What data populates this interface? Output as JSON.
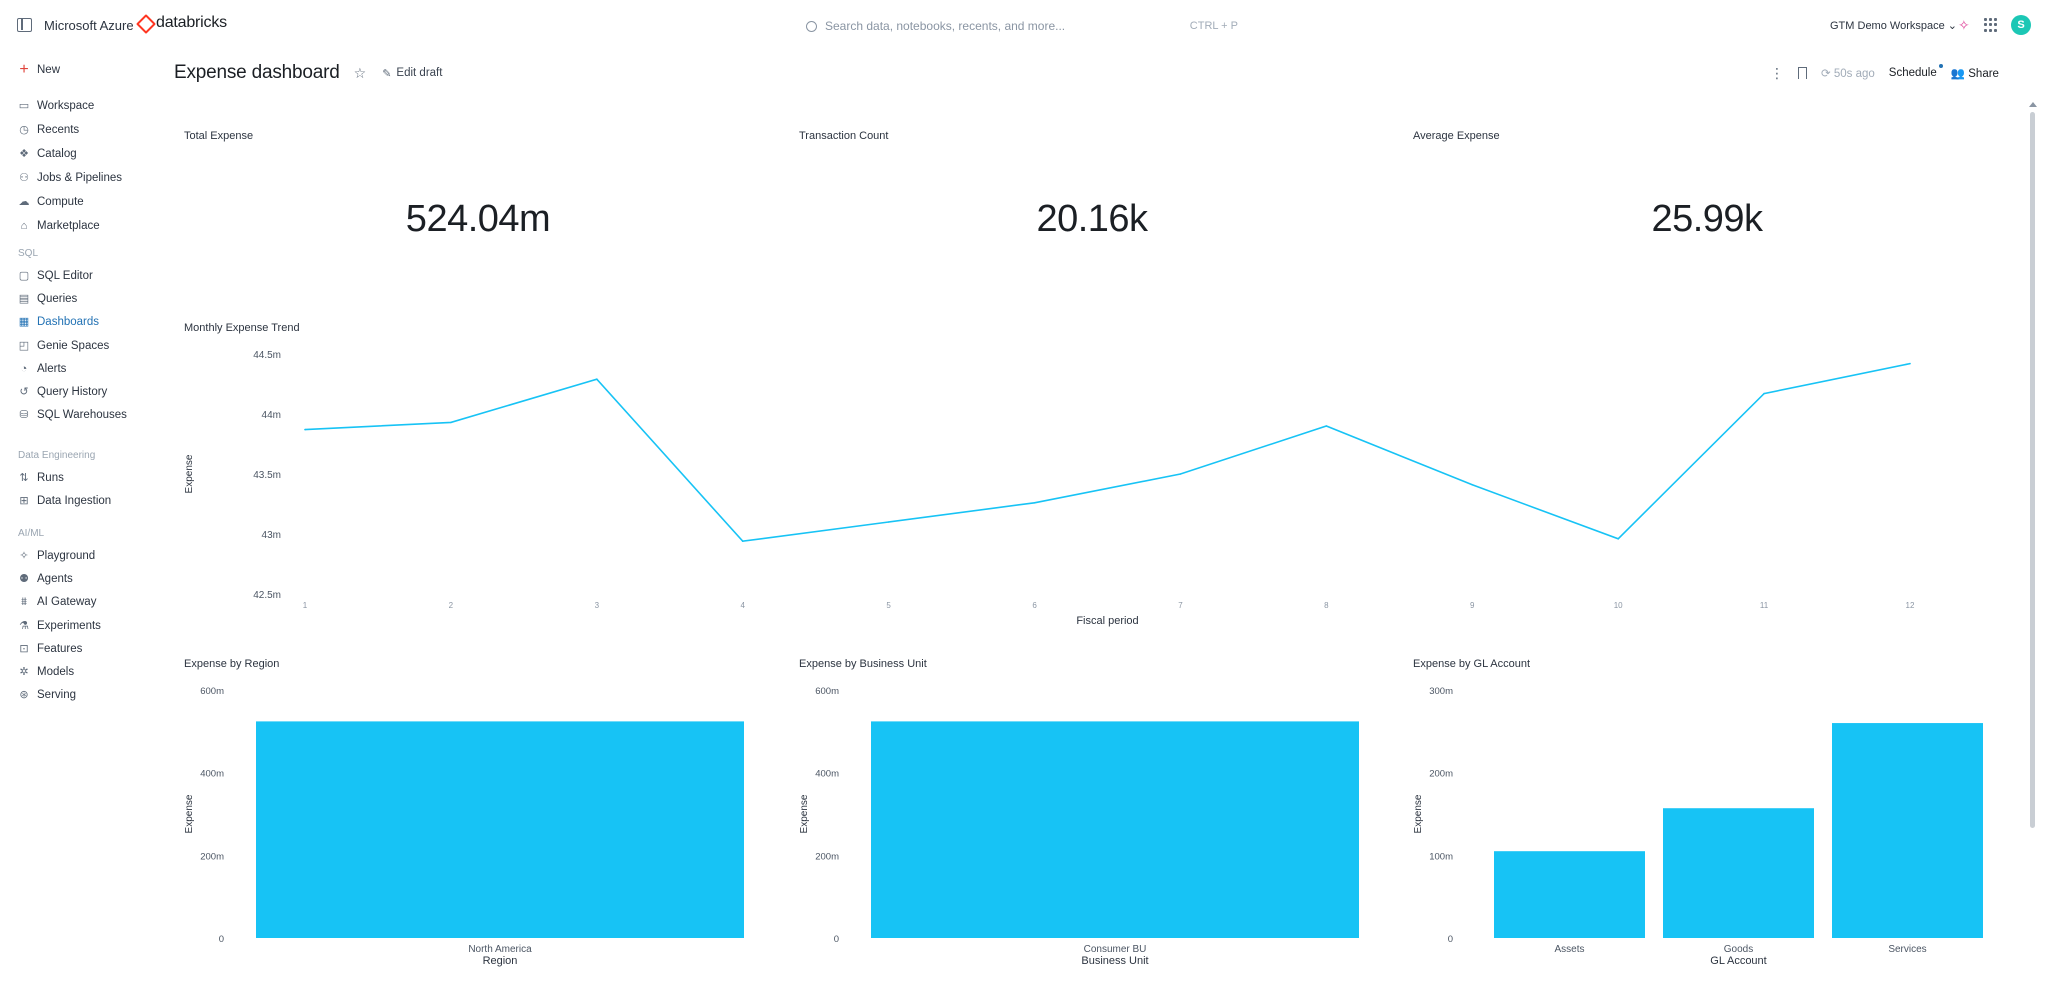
{
  "topbar": {
    "azure_label": "Microsoft Azure",
    "brand_label": "databricks",
    "search_placeholder": "Search data, notebooks, recents, and more...",
    "search_shortcut": "CTRL + P",
    "workspace_label": "GTM Demo Workspace",
    "avatar_initial": "S"
  },
  "sidebar": {
    "new_label": "New",
    "items_main": [
      {
        "label": "Workspace",
        "icon": "folder-icon"
      },
      {
        "label": "Recents",
        "icon": "clock-icon"
      },
      {
        "label": "Catalog",
        "icon": "catalog-icon"
      },
      {
        "label": "Jobs & Pipelines",
        "icon": "workflow-icon"
      },
      {
        "label": "Compute",
        "icon": "cloud-icon"
      },
      {
        "label": "Marketplace",
        "icon": "store-icon"
      }
    ],
    "section_sql": "SQL",
    "items_sql": [
      {
        "label": "SQL Editor",
        "icon": "editor-icon"
      },
      {
        "label": "Queries",
        "icon": "query-icon"
      },
      {
        "label": "Dashboards",
        "icon": "dashboard-icon",
        "active": true
      },
      {
        "label": "Genie Spaces",
        "icon": "genie-icon"
      },
      {
        "label": "Alerts",
        "icon": "bell-icon"
      },
      {
        "label": "Query History",
        "icon": "history-icon"
      },
      {
        "label": "SQL Warehouses",
        "icon": "warehouse-icon"
      }
    ],
    "section_de": "Data Engineering",
    "items_de": [
      {
        "label": "Runs",
        "icon": "runs-icon"
      },
      {
        "label": "Data Ingestion",
        "icon": "ingestion-icon"
      }
    ],
    "section_ai": "AI/ML",
    "items_ai": [
      {
        "label": "Playground",
        "icon": "playground-icon"
      },
      {
        "label": "Agents",
        "icon": "agents-icon"
      },
      {
        "label": "AI Gateway",
        "icon": "gateway-icon"
      },
      {
        "label": "Experiments",
        "icon": "flask-icon"
      },
      {
        "label": "Features",
        "icon": "features-icon"
      },
      {
        "label": "Models",
        "icon": "models-icon"
      },
      {
        "label": "Serving",
        "icon": "serving-icon"
      }
    ]
  },
  "header": {
    "title": "Expense dashboard",
    "edit_draft": "Edit draft",
    "refresh_label": "50s ago",
    "schedule_label": "Schedule",
    "share_label": "Share"
  },
  "counters": [
    {
      "title": "Total Expense",
      "value": "524.04m"
    },
    {
      "title": "Transaction Count",
      "value": "20.16k"
    },
    {
      "title": "Average Expense",
      "value": "25.99k"
    }
  ],
  "chart_data": [
    {
      "type": "line",
      "title": "Monthly Expense Trend",
      "xlabel": "Fiscal period",
      "ylabel": "Expense",
      "x": [
        1,
        2,
        3,
        4,
        5,
        6,
        7,
        8,
        9,
        10,
        11,
        12
      ],
      "x_tick_labels": [
        "1",
        "2",
        "3",
        "4",
        "5",
        "6",
        "7",
        "8",
        "9",
        "10",
        "11",
        "12"
      ],
      "y_tick_labels": [
        "42.5m",
        "43m",
        "43.5m",
        "44m",
        "44.5m"
      ],
      "y_ticks": [
        42.5,
        43,
        43.5,
        44,
        44.5
      ],
      "ylim": [
        42.5,
        44.5
      ],
      "series": [
        {
          "values": [
            43.87,
            43.93,
            44.29,
            42.94,
            43.1,
            43.26,
            43.5,
            43.9,
            43.41,
            42.96,
            44.17,
            44.42
          ]
        }
      ],
      "color": "#17c3f5"
    },
    {
      "type": "bar",
      "title": "Expense by Region",
      "xlabel": "Region",
      "ylabel": "Expense",
      "categories": [
        "North America"
      ],
      "values": [
        524.04
      ],
      "y_tick_labels": [
        "0",
        "200m",
        "400m",
        "600m"
      ],
      "y_ticks": [
        0,
        200,
        400,
        600
      ],
      "ylim": [
        0,
        600
      ],
      "color": "#17c3f5"
    },
    {
      "type": "bar",
      "title": "Expense by Business Unit",
      "xlabel": "Business Unit",
      "ylabel": "Expense",
      "categories": [
        "Consumer BU"
      ],
      "values": [
        524.04
      ],
      "y_tick_labels": [
        "0",
        "200m",
        "400m",
        "600m"
      ],
      "y_ticks": [
        0,
        200,
        400,
        600
      ],
      "ylim": [
        0,
        600
      ],
      "color": "#17c3f5"
    },
    {
      "type": "bar",
      "title": "Expense by GL Account",
      "xlabel": "GL Account",
      "ylabel": "Expense",
      "categories": [
        "Assets",
        "Goods",
        "Services"
      ],
      "values": [
        105,
        157,
        260
      ],
      "y_tick_labels": [
        "0",
        "100m",
        "200m",
        "300m"
      ],
      "y_ticks": [
        0,
        100,
        200,
        300
      ],
      "ylim": [
        0,
        300
      ],
      "color": "#17c3f5"
    }
  ]
}
